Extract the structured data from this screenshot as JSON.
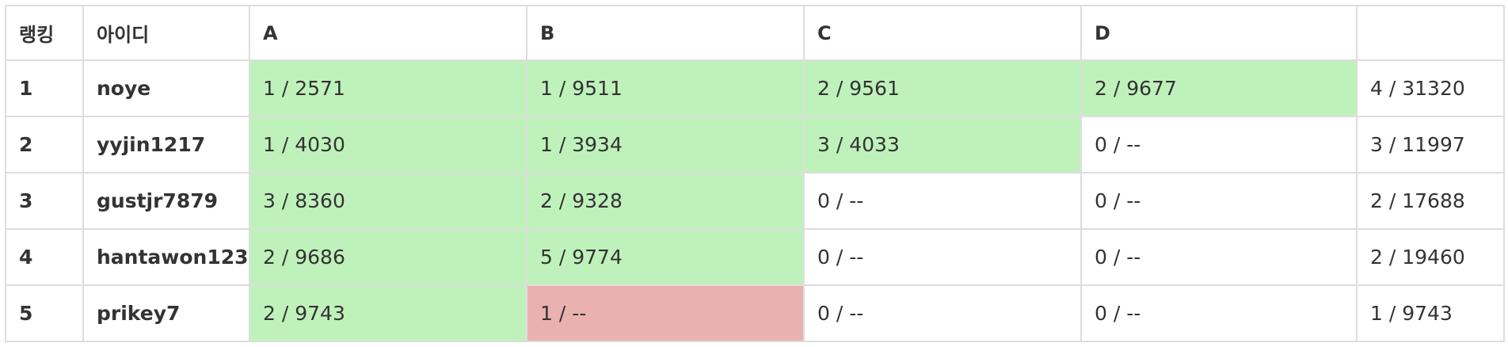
{
  "headers": {
    "rank": "랭킹",
    "id": "아이디",
    "problems": [
      "A",
      "B",
      "C",
      "D"
    ],
    "total": ""
  },
  "colors": {
    "accepted": "#bff2bb",
    "wrong": "#eab1b1",
    "none": "#ffffff",
    "border": "#dddddd"
  },
  "rows": [
    {
      "rank": "1",
      "id": "noye",
      "cells": [
        {
          "text": "1 / 2571",
          "status": "accepted"
        },
        {
          "text": "1 / 9511",
          "status": "accepted"
        },
        {
          "text": "2 / 9561",
          "status": "accepted"
        },
        {
          "text": "2 / 9677",
          "status": "accepted"
        }
      ],
      "total": "4 / 31320"
    },
    {
      "rank": "2",
      "id": "yyjin1217",
      "cells": [
        {
          "text": "1 / 4030",
          "status": "accepted"
        },
        {
          "text": "1 / 3934",
          "status": "accepted"
        },
        {
          "text": "3 / 4033",
          "status": "accepted"
        },
        {
          "text": "0 / --",
          "status": "none"
        }
      ],
      "total": "3 / 11997"
    },
    {
      "rank": "3",
      "id": "gustjr7879",
      "cells": [
        {
          "text": "3 / 8360",
          "status": "accepted"
        },
        {
          "text": "2 / 9328",
          "status": "accepted"
        },
        {
          "text": "0 / --",
          "status": "none"
        },
        {
          "text": "0 / --",
          "status": "none"
        }
      ],
      "total": "2 / 17688"
    },
    {
      "rank": "4",
      "id": "hantawon123",
      "cells": [
        {
          "text": "2 / 9686",
          "status": "accepted"
        },
        {
          "text": "5 / 9774",
          "status": "accepted"
        },
        {
          "text": "0 / --",
          "status": "none"
        },
        {
          "text": "0 / --",
          "status": "none"
        }
      ],
      "total": "2 / 19460"
    },
    {
      "rank": "5",
      "id": "prikey7",
      "cells": [
        {
          "text": "2 / 9743",
          "status": "accepted"
        },
        {
          "text": "1 / --",
          "status": "wrong"
        },
        {
          "text": "0 / --",
          "status": "none"
        },
        {
          "text": "0 / --",
          "status": "none"
        }
      ],
      "total": "1 / 9743"
    }
  ]
}
